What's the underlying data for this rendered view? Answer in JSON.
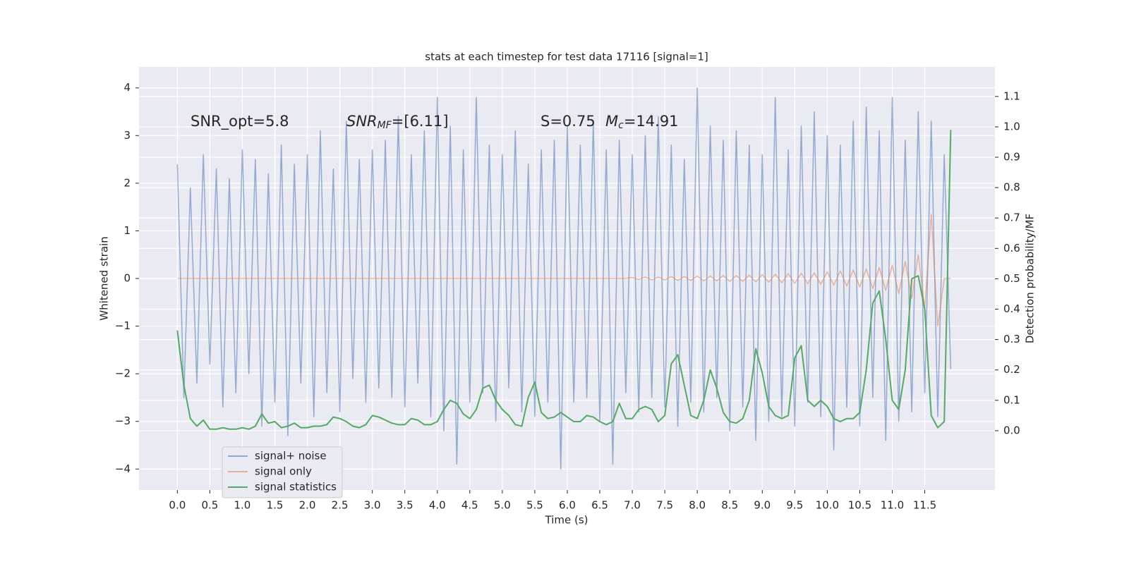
{
  "chart_data": {
    "type": "line",
    "title": "stats at each timestep for test data 17116 [signal=1]",
    "xlabel": "Time (s)",
    "ylabel": "Whitened strain",
    "y2label": "Detection probability/MF",
    "annotations": [
      "SNR_opt=5.8",
      "SNR_MF=[6.11]",
      "S=0.75",
      "M_c=14.91"
    ],
    "xlim": [
      -0.59,
      12.58
    ],
    "ylim": [
      -4.44,
      4.44
    ],
    "y2lim": [
      -0.195,
      1.197
    ],
    "xticks": [
      {
        "value": 0,
        "label": "0.0"
      },
      0.5,
      {
        "value": 1,
        "label": "1.0"
      },
      1.5,
      {
        "value": 2,
        "label": "2.0"
      },
      2.5,
      {
        "value": 3,
        "label": "3.0"
      },
      3.5,
      {
        "value": 4,
        "label": "4.0"
      },
      4.5,
      {
        "value": 5,
        "label": "5.0"
      },
      5.5,
      {
        "value": 6,
        "label": "6.0"
      },
      6.5,
      {
        "value": 7,
        "label": "7.0"
      },
      7.5,
      {
        "value": 8,
        "label": "8.0"
      },
      8.5,
      {
        "value": 9,
        "label": "9.0"
      },
      9.5,
      {
        "value": 10,
        "label": "10.0"
      },
      10.5,
      {
        "value": 11,
        "label": "11.0"
      },
      11.5
    ],
    "yticks": [
      {
        "value": -4,
        "label": "−4"
      },
      {
        "value": -3,
        "label": "−3"
      },
      {
        "value": -2,
        "label": "−2"
      },
      {
        "value": -1,
        "label": "−1"
      },
      0,
      1,
      2,
      3,
      4
    ],
    "y2ticks": [
      {
        "value": 0,
        "label": "0.0"
      },
      0.1,
      0.2,
      0.3,
      0.4,
      0.5,
      0.6,
      0.7,
      0.8,
      0.9,
      {
        "value": 1,
        "label": "1.0"
      },
      1.1
    ],
    "grid": true,
    "legend": "lower left",
    "x": [
      0,
      0.1,
      0.2,
      0.3,
      0.4,
      0.5,
      0.6,
      0.7,
      0.8,
      0.9,
      1,
      1.1,
      1.2,
      1.3,
      1.4,
      1.5,
      1.6,
      1.7,
      1.8,
      1.9,
      2,
      2.1,
      2.2,
      2.3,
      2.4,
      2.5,
      2.6,
      2.7,
      2.8,
      2.9,
      3,
      3.1,
      3.2,
      3.3,
      3.4,
      3.5,
      3.6,
      3.7,
      3.8,
      3.9,
      4,
      4.1,
      4.2,
      4.3,
      4.4,
      4.5,
      4.6,
      4.7,
      4.8,
      4.9,
      5,
      5.1,
      5.2,
      5.3,
      5.4,
      5.5,
      5.6,
      5.7,
      5.8,
      5.9,
      6,
      6.1,
      6.2,
      6.3,
      6.4,
      6.5,
      6.6,
      6.7,
      6.8,
      6.9,
      7,
      7.1,
      7.2,
      7.3,
      7.4,
      7.5,
      7.6,
      7.7,
      7.8,
      7.9,
      8,
      8.1,
      8.2,
      8.3,
      8.4,
      8.5,
      8.6,
      8.7,
      8.8,
      8.9,
      9,
      9.1,
      9.2,
      9.3,
      9.4,
      9.5,
      9.6,
      9.7,
      9.8,
      9.9,
      10,
      10.1,
      10.2,
      10.3,
      10.4,
      10.5,
      10.6,
      10.7,
      10.8,
      10.9,
      11,
      11.1,
      11.2,
      11.3,
      11.4,
      11.5,
      11.6,
      11.7,
      11.8,
      11.9
    ],
    "series": [
      {
        "name": "signal+ noise",
        "color": "#4c72b0",
        "alpha": 0.55,
        "values": [
          2.4,
          -2.5,
          1.9,
          -2.2,
          2.6,
          -1.8,
          2.3,
          -2.7,
          2.1,
          -2.4,
          2.7,
          -2.0,
          2.5,
          -3.1,
          2.2,
          -2.6,
          2.8,
          -3.3,
          2.4,
          -2.2,
          2.6,
          -2.9,
          3.1,
          -2.4,
          2.3,
          -2.8,
          3.3,
          -2.1,
          2.5,
          -2.6,
          2.7,
          -2.3,
          2.9,
          -2.5,
          3.4,
          -2.7,
          2.6,
          -2.2,
          3.1,
          -2.9,
          3.8,
          -3.2,
          3.2,
          -3.9,
          2.7,
          -2.6,
          3.8,
          -2.4,
          2.8,
          -3.0,
          2.6,
          -2.3,
          3.1,
          -2.8,
          2.4,
          -2.9,
          2.7,
          -2.6,
          2.9,
          -4.0,
          3.2,
          -2.6,
          2.8,
          -2.5,
          3.3,
          -3.0,
          2.7,
          -3.9,
          2.9,
          -2.4,
          2.6,
          -2.8,
          3.0,
          -2.5,
          3.4,
          -2.7,
          2.8,
          -3.1,
          2.5,
          -2.6,
          4.0,
          -2.8,
          3.2,
          -2.5,
          2.9,
          -3.2,
          3.1,
          -2.7,
          2.8,
          -3.4,
          2.6,
          -3.0,
          3.8,
          -2.9,
          2.7,
          -3.1,
          3.2,
          -2.6,
          3.5,
          -2.9,
          3.0,
          -3.6,
          2.8,
          -2.7,
          3.3,
          -3.1,
          3.6,
          -2.5,
          3.1,
          -3.4,
          3.8,
          -3.0,
          2.9,
          -2.8,
          3.5,
          -2.4,
          3.3,
          -2.9,
          2.6,
          -1.9
        ]
      },
      {
        "name": "signal only",
        "color": "#dd8452",
        "alpha": 0.55,
        "values": [
          0,
          0,
          0,
          0,
          0,
          0,
          0,
          0,
          0,
          0,
          0,
          0,
          0,
          0,
          0,
          0,
          0,
          0,
          0,
          0,
          0,
          0,
          0,
          0,
          0,
          0,
          0,
          0,
          0,
          0,
          0,
          0,
          0,
          0,
          0,
          0,
          0,
          0,
          0,
          0,
          0,
          0,
          0,
          0,
          0,
          0,
          0,
          0,
          0,
          0,
          0,
          0,
          0,
          0,
          0,
          0,
          0,
          0,
          0,
          0,
          0,
          0,
          0,
          0,
          0,
          0,
          0,
          0,
          0,
          0,
          0.02,
          -0.02,
          0.03,
          -0.03,
          0.03,
          -0.03,
          0.04,
          -0.04,
          0.04,
          -0.04,
          0.05,
          -0.05,
          0.05,
          -0.05,
          0.06,
          -0.06,
          0.06,
          -0.06,
          0.07,
          -0.07,
          0.08,
          -0.08,
          0.09,
          -0.09,
          0.1,
          -0.1,
          0.11,
          -0.11,
          0.12,
          -0.12,
          0.14,
          -0.14,
          0.16,
          -0.16,
          0.18,
          -0.18,
          0.2,
          -0.21,
          0.23,
          -0.25,
          0.28,
          -0.32,
          0.36,
          -0.42,
          0.5,
          -0.62,
          1.35,
          -1.0,
          0,
          0
        ]
      },
      {
        "name": "signal statistics",
        "color": "#55a868",
        "axis": "y2",
        "values": [
          0.33,
          0.15,
          0.04,
          0.015,
          0.035,
          0.005,
          0.005,
          0.01,
          0.005,
          0.005,
          0.01,
          0.005,
          0.015,
          0.055,
          0.025,
          0.03,
          0.01,
          0.015,
          0.025,
          0.01,
          0.01,
          0.015,
          0.015,
          0.02,
          0.045,
          0.04,
          0.03,
          0.015,
          0.01,
          0.02,
          0.05,
          0.045,
          0.035,
          0.025,
          0.02,
          0.02,
          0.04,
          0.035,
          0.02,
          0.02,
          0.03,
          0.07,
          0.1,
          0.09,
          0.055,
          0.04,
          0.07,
          0.14,
          0.15,
          0.1,
          0.07,
          0.05,
          0.02,
          0.015,
          0.11,
          0.16,
          0.06,
          0.04,
          0.045,
          0.06,
          0.045,
          0.03,
          0.03,
          0.05,
          0.045,
          0.03,
          0.02,
          0.03,
          0.09,
          0.04,
          0.04,
          0.07,
          0.08,
          0.07,
          0.03,
          0.05,
          0.22,
          0.25,
          0.15,
          0.05,
          0.04,
          0.1,
          0.2,
          0.14,
          0.06,
          0.03,
          0.025,
          0.04,
          0.1,
          0.27,
          0.19,
          0.08,
          0.05,
          0.04,
          0.05,
          0.24,
          0.28,
          0.1,
          0.08,
          0.1,
          0.08,
          0.04,
          0.03,
          0.04,
          0.04,
          0.06,
          0.2,
          0.42,
          0.46,
          0.3,
          0.1,
          0.07,
          0.2,
          0.5,
          0.51,
          0.4,
          0.05,
          0.01,
          0.03,
          0.99
        ]
      }
    ]
  }
}
